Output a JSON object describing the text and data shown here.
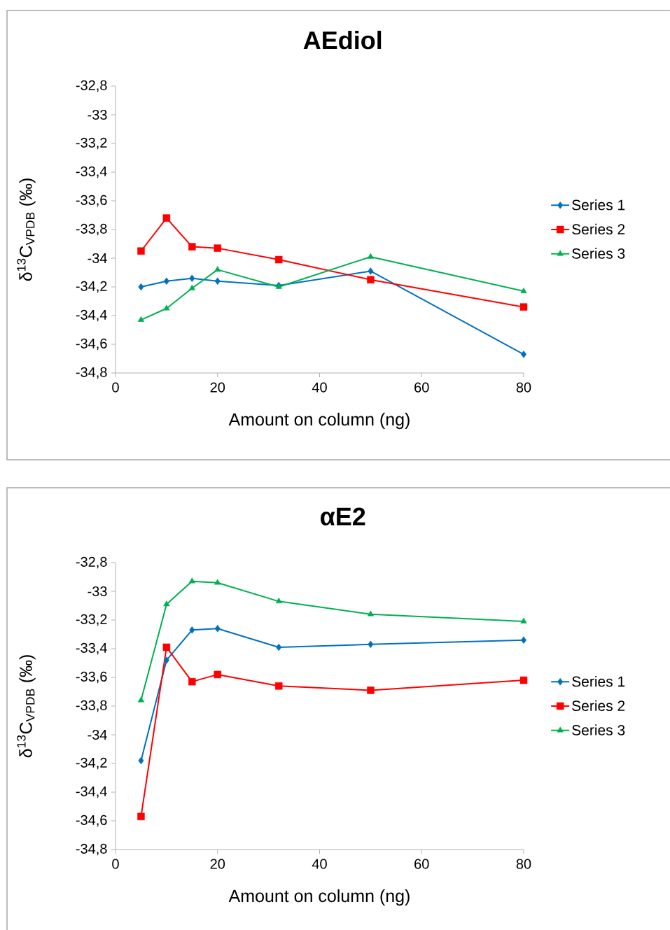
{
  "chart_data": [
    {
      "type": "line",
      "title": "AEdiol",
      "xlabel": "Amount on column (ng)",
      "ylabel": "δ$^{13}$C$_{VPDB}$ (‰)",
      "x": [
        5,
        10,
        15,
        20,
        32,
        50,
        80
      ],
      "xlim": [
        0,
        80
      ],
      "xticks": [
        0,
        20,
        40,
        60,
        80
      ],
      "ylim": [
        -34.8,
        -32.8
      ],
      "yticks": [
        {
          "value": -34.8,
          "label": "-34,8"
        },
        {
          "value": -34.6,
          "label": "-34,6"
        },
        {
          "value": -34.4,
          "label": "-34,4"
        },
        {
          "value": -34.2,
          "label": "-34,2"
        },
        {
          "value": -34,
          "label": "-34"
        },
        {
          "value": -33.8,
          "label": "-33,8"
        },
        {
          "value": -33.6,
          "label": "-33,6"
        },
        {
          "value": -33.4,
          "label": "-33,4"
        },
        {
          "value": -33.2,
          "label": "-33,2"
        },
        {
          "value": -33,
          "label": "-33"
        },
        {
          "value": -32.8,
          "label": "-32,8"
        }
      ],
      "legend": "right",
      "line_style": "solid",
      "series": [
        {
          "name": "Series 1",
          "color": "#0070c0",
          "marker": "diamond",
          "values": [
            -34.2,
            -34.16,
            -34.14,
            -34.16,
            -34.19,
            -34.09,
            -34.67
          ]
        },
        {
          "name": "Series 2",
          "color": "#ff0000",
          "marker": "square",
          "values": [
            -33.95,
            -33.72,
            -33.92,
            -33.93,
            -34.01,
            -34.15,
            -34.34
          ]
        },
        {
          "name": "Series 3",
          "color": "#00b050",
          "marker": "triangle",
          "values": [
            -34.43,
            -34.35,
            -34.21,
            -34.08,
            -34.2,
            -33.99,
            -34.23
          ]
        }
      ]
    },
    {
      "type": "line",
      "title": "αE2",
      "xlabel": "Amount on column (ng)",
      "ylabel": "δ$^{13}$C$_{VPDB}$ (‰)",
      "x": [
        5,
        10,
        15,
        20,
        32,
        50,
        80
      ],
      "xlim": [
        0,
        80
      ],
      "xticks": [
        0,
        20,
        40,
        60,
        80
      ],
      "ylim": [
        -34.8,
        -32.8
      ],
      "yticks": [
        {
          "value": -34.8,
          "label": "-34,8"
        },
        {
          "value": -34.6,
          "label": "-34,6"
        },
        {
          "value": -34.4,
          "label": "-34,4"
        },
        {
          "value": -34.2,
          "label": "-34,2"
        },
        {
          "value": -34,
          "label": "-34"
        },
        {
          "value": -33.8,
          "label": "-33,8"
        },
        {
          "value": -33.6,
          "label": "-33,6"
        },
        {
          "value": -33.4,
          "label": "-33,4"
        },
        {
          "value": -33.2,
          "label": "-33,2"
        },
        {
          "value": -33,
          "label": "-33"
        },
        {
          "value": -32.8,
          "label": "-32,8"
        }
      ],
      "legend": "right",
      "line_style": "solid",
      "series": [
        {
          "name": "Series 1",
          "color": "#0070c0",
          "marker": "diamond",
          "values": [
            -34.18,
            -33.48,
            -33.27,
            -33.26,
            -33.39,
            -33.37,
            -33.34
          ]
        },
        {
          "name": "Series 2",
          "color": "#ff0000",
          "marker": "square",
          "values": [
            -34.57,
            -33.39,
            -33.63,
            -33.58,
            -33.66,
            -33.69,
            -33.62
          ]
        },
        {
          "name": "Series 3",
          "color": "#00b050",
          "marker": "triangle",
          "values": [
            -33.76,
            -33.09,
            -32.93,
            -32.94,
            -33.07,
            -33.16,
            -33.21
          ]
        }
      ]
    }
  ]
}
